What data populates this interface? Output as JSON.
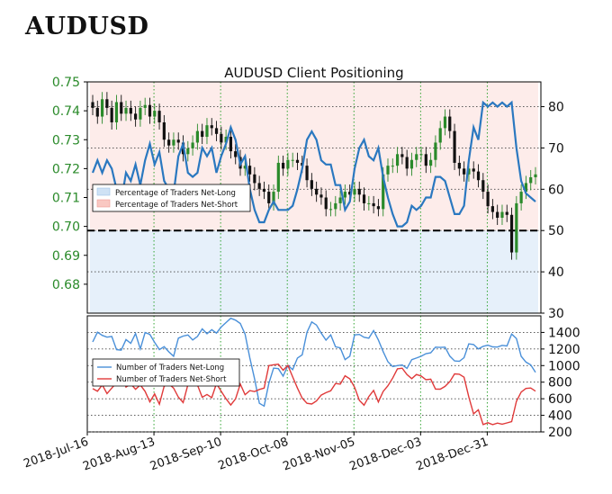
{
  "page_title": "AUDUSD",
  "chart_data": [
    {
      "type": "candlestick+line",
      "title": "AUDUSD Client Positioning",
      "x_tick_labels": [
        "2018-Jul-16",
        "2018-Aug-13",
        "2018-Sep-10",
        "2018-Oct-08",
        "2018-Nov-05",
        "2018-Dec-03",
        "2018-Dec-31"
      ],
      "price_axis": {
        "ylim": [
          0.67,
          0.75
        ],
        "ticks": [
          "0.68",
          "0.69",
          "0.70",
          "0.71",
          "0.72",
          "0.73",
          "0.74",
          "0.75"
        ],
        "color": "#2a8a2a"
      },
      "percent_axis": {
        "ylim": [
          30,
          86
        ],
        "ticks": [
          "30",
          "40",
          "50",
          "60",
          "70",
          "80"
        ],
        "reference_line": 50
      },
      "legend": [
        "Percentage of Traders Net-Long",
        "Percentage of Traders Net-Short"
      ],
      "legend_placement": "center-left",
      "price_close": [
        0.741,
        0.738,
        0.744,
        0.741,
        0.736,
        0.743,
        0.739,
        0.741,
        0.739,
        0.737,
        0.741,
        0.742,
        0.738,
        0.74,
        0.736,
        0.73,
        0.728,
        0.73,
        0.729,
        0.725,
        0.727,
        0.729,
        0.733,
        0.731,
        0.735,
        0.734,
        0.732,
        0.729,
        0.731,
        0.726,
        0.724,
        0.72,
        0.721,
        0.718,
        0.715,
        0.713,
        0.712,
        0.708,
        0.712,
        0.722,
        0.72,
        0.723,
        0.723,
        0.722,
        0.721,
        0.716,
        0.713,
        0.711,
        0.71,
        0.706,
        0.706,
        0.708,
        0.71,
        0.712,
        0.711,
        0.713,
        0.711,
        0.708,
        0.708,
        0.707,
        0.706,
        0.718,
        0.721,
        0.721,
        0.725,
        0.724,
        0.72,
        0.723,
        0.725,
        0.725,
        0.721,
        0.723,
        0.729,
        0.734,
        0.738,
        0.733,
        0.722,
        0.72,
        0.718,
        0.72,
        0.719,
        0.716,
        0.712,
        0.707,
        0.705,
        0.703,
        0.705,
        0.704,
        0.691,
        0.708,
        0.712,
        0.715,
        0.717,
        0.718
      ],
      "series": [
        {
          "name": "Percentage of Traders Net-Long",
          "values": [
            64,
            67,
            64,
            67,
            65,
            60,
            57,
            64,
            62,
            66,
            61,
            67,
            71,
            66,
            69,
            62,
            60,
            59,
            68,
            71,
            64,
            63,
            64,
            70,
            68,
            70,
            64,
            68,
            71,
            75,
            72,
            66,
            68,
            60,
            55,
            52,
            52,
            55,
            57,
            55,
            55,
            55,
            56,
            60,
            65,
            72,
            74,
            72,
            67,
            66,
            66,
            61,
            61,
            55,
            57,
            65,
            70,
            72,
            68,
            67,
            70,
            63,
            58,
            54,
            51,
            51,
            52,
            56,
            55,
            56,
            58,
            58,
            63,
            63,
            62,
            58,
            54,
            54,
            56,
            67,
            75,
            72,
            81,
            80,
            81,
            80,
            81,
            80,
            81,
            70,
            62,
            59,
            58,
            57
          ]
        },
        {
          "name": "Percentage of Traders Net-Short",
          "values": [
            36,
            33,
            36,
            33,
            35,
            40,
            43,
            36,
            38,
            34,
            39,
            33,
            29,
            34,
            31,
            38,
            40,
            41,
            32,
            29,
            36,
            37,
            36,
            30,
            32,
            30,
            36,
            32,
            29,
            25,
            28,
            34,
            32,
            40,
            45,
            48,
            48,
            45,
            43,
            45,
            45,
            45,
            44,
            40,
            35,
            28,
            26,
            28,
            33,
            34,
            34,
            39,
            39,
            45,
            43,
            35,
            30,
            28,
            32,
            33,
            30,
            37,
            42,
            46,
            49,
            49,
            48,
            44,
            45,
            44,
            42,
            42,
            37,
            37,
            38,
            42,
            46,
            46,
            44,
            33,
            25,
            28,
            19,
            20,
            19,
            20,
            19,
            20,
            19,
            30,
            38,
            41,
            42,
            43
          ]
        }
      ]
    },
    {
      "type": "line",
      "ylim": [
        200,
        1600
      ],
      "y_ticks": [
        "200",
        "400",
        "600",
        "800",
        "1000",
        "1200",
        "1400"
      ],
      "legend": [
        "Number of Traders Net-Long",
        "Number of Traders Net-Short"
      ],
      "legend_placement": "center-left",
      "series": [
        {
          "name": "Number of Traders Net-Long",
          "color": "#4a90d9",
          "values": [
            1285,
            1403,
            1364,
            1343,
            1352,
            1192,
            1187,
            1314,
            1269,
            1386,
            1201,
            1398,
            1376,
            1280,
            1193,
            1228,
            1166,
            1113,
            1331,
            1356,
            1369,
            1309,
            1352,
            1443,
            1384,
            1433,
            1392,
            1465,
            1519,
            1571,
            1548,
            1508,
            1380,
            1092,
            838,
            545,
            512,
            785,
            969,
            963,
            873,
            1002,
            951,
            1091,
            1130,
            1403,
            1526,
            1489,
            1392,
            1307,
            1370,
            1227,
            1214,
            1072,
            1114,
            1370,
            1375,
            1342,
            1331,
            1422,
            1309,
            1169,
            1046,
            988,
            1000,
            1007,
            966,
            1072,
            1091,
            1113,
            1144,
            1154,
            1222,
            1219,
            1222,
            1114,
            1056,
            1052,
            1095,
            1262,
            1254,
            1201,
            1232,
            1246,
            1226,
            1223,
            1244,
            1236,
            1381,
            1327,
            1112,
            1042,
            1008,
            918
          ]
        },
        {
          "name": "Number of Traders Net-Short",
          "color": "#e03a3a",
          "values": [
            722,
            691,
            767,
            662,
            728,
            794,
            895,
            741,
            778,
            714,
            767,
            689,
            562,
            658,
            534,
            751,
            779,
            728,
            619,
            554,
            770,
            769,
            765,
            618,
            651,
            614,
            783,
            690,
            601,
            524,
            598,
            777,
            649,
            698,
            686,
            712,
            729,
            1000,
            1010,
            1016,
            945,
            1002,
            863,
            728,
            607,
            545,
            536,
            573,
            644,
            673,
            696,
            784,
            776,
            877,
            840,
            738,
            580,
            522,
            626,
            700,
            561,
            687,
            757,
            849,
            961,
            968,
            891,
            842,
            892,
            874,
            829,
            836,
            717,
            716,
            749,
            807,
            900,
            896,
            860,
            621,
            418,
            467,
            289,
            311,
            288,
            306,
            293,
            309,
            324,
            569,
            681,
            724,
            730,
            692
          ]
        }
      ]
    }
  ]
}
